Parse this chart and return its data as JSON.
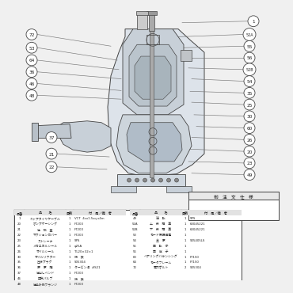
{
  "bg_color": "#f0f0f0",
  "left_parts": [
    [
      "1",
      "キャプタイヤケーブル",
      "1",
      "VCT  4cx1.5sq x4m"
    ],
    [
      "20",
      "ポンプケーシング",
      "1",
      "FT200"
    ],
    [
      "21",
      "吐　排　蓋",
      "1",
      "FT200"
    ],
    [
      "22",
      "サクションカバー",
      "1",
      "FT200"
    ],
    [
      "23",
      "ストレーナ",
      "1",
      "SPS"
    ],
    [
      "25",
      "メカニカルシール",
      "1",
      "φ25A"
    ],
    [
      "26",
      "オイルシール",
      "1",
      "TL20×32×1"
    ],
    [
      "30",
      "オイルリフター",
      "1",
      "鋳　鉄"
    ],
    [
      "35",
      "圧液プラグ",
      "1",
      "S05304"
    ],
    [
      "36",
      "原　原　鐘",
      "1",
      "タービン油  #S21"
    ],
    [
      "37",
      "吐出しベンド",
      "1",
      "FT200"
    ],
    [
      "46",
      "空気バルブ",
      "1",
      "鋳　鉄"
    ],
    [
      "48",
      "吐込み側フランジ",
      "1",
      "FT200"
    ]
  ],
  "right_parts": [
    [
      "49",
      "逆　転",
      "1",
      "SPS"
    ],
    [
      "52A",
      "上　段　積　算",
      "1",
      "63045221"
    ],
    [
      "52B",
      "下　段　積　算",
      "1",
      "63045221"
    ],
    [
      "53",
      "モード保護送電",
      "1",
      ""
    ],
    [
      "54",
      "主　原",
      "1",
      "S05405LS"
    ],
    [
      "55",
      "固　転　子",
      "1",
      ""
    ],
    [
      "56",
      "固　定　子",
      "1",
      ""
    ],
    [
      "60",
      "ベアリングバランシング",
      "1",
      "FT150"
    ],
    [
      "64",
      "モータフレーム",
      "1",
      "FT150"
    ],
    [
      "72",
      "電力ボルト",
      "2",
      "S05304"
    ]
  ],
  "order_header": "御　注　文　仕　様",
  "line_color": "#666666",
  "border_color": "#444444",
  "labels_left": [
    [
      30,
      35,
      130,
      50,
      "72"
    ],
    [
      30,
      52,
      138,
      68,
      "53"
    ],
    [
      30,
      68,
      140,
      80,
      "64"
    ],
    [
      30,
      83,
      143,
      92,
      "36"
    ],
    [
      30,
      98,
      143,
      107,
      "46"
    ],
    [
      30,
      113,
      143,
      118,
      "48"
    ],
    [
      55,
      167,
      100,
      163,
      "37"
    ],
    [
      55,
      188,
      128,
      192,
      "21"
    ],
    [
      55,
      205,
      125,
      208,
      "22"
    ]
  ],
  "labels_right": [
    [
      310,
      18,
      220,
      20,
      "1"
    ],
    [
      305,
      35,
      215,
      38,
      "52A"
    ],
    [
      305,
      50,
      222,
      52,
      "55"
    ],
    [
      305,
      65,
      228,
      65,
      "56"
    ],
    [
      305,
      80,
      228,
      78,
      "52B"
    ],
    [
      305,
      95,
      232,
      92,
      "54"
    ],
    [
      305,
      110,
      230,
      108,
      "35"
    ],
    [
      305,
      125,
      232,
      122,
      "25"
    ],
    [
      305,
      140,
      235,
      138,
      "30"
    ],
    [
      305,
      155,
      238,
      153,
      "60"
    ],
    [
      305,
      170,
      232,
      167,
      "26"
    ],
    [
      305,
      185,
      228,
      182,
      "20"
    ],
    [
      305,
      200,
      228,
      198,
      "23"
    ],
    [
      305,
      215,
      232,
      213,
      "49"
    ]
  ]
}
